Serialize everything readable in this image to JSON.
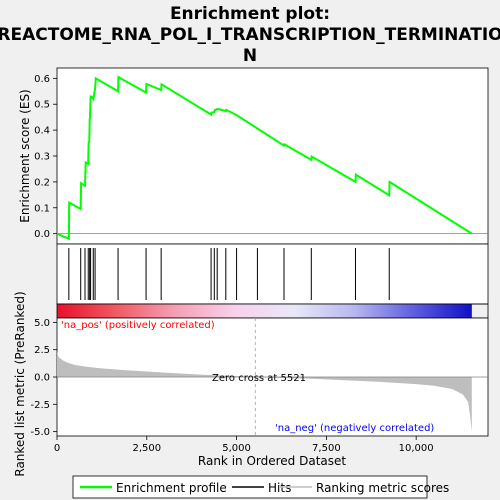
{
  "chart_data": {
    "type": "line",
    "title_lines": [
      "Enrichment plot:",
      "REACTOME_RNA_POL_I_TRANSCRIPTION_TERMINATIO",
      "N"
    ],
    "panels": {
      "enrichment": {
        "ylabel": "Enrichment score (ES)",
        "ylim": [
          -0.04,
          0.64
        ],
        "yticks": [
          "0.0",
          "0.1",
          "0.2",
          "0.3",
          "0.4",
          "0.5",
          "0.6"
        ],
        "series": [
          {
            "name": "Enrichment profile",
            "color": "#00ff00",
            "x": [
              0,
              330,
              340,
              660,
              670,
              780,
              800,
              870,
              880,
              900,
              910,
              920,
              935,
              960,
              1010,
              1060,
              1080,
              1700,
              1710,
              2480,
              2490,
              2900,
              2910,
              4290,
              4300,
              4380,
              4400,
              4460,
              4470,
              4700,
              4710,
              5000,
              6320,
              6330,
              7080,
              7090,
              8310,
              8320,
              9250,
              9260,
              11550
            ],
            "y": [
              0.0,
              -0.02,
              0.12,
              0.095,
              0.195,
              0.185,
              0.275,
              0.27,
              0.35,
              0.355,
              0.44,
              0.45,
              0.53,
              0.53,
              0.52,
              0.56,
              0.6,
              0.55,
              0.605,
              0.545,
              0.578,
              0.555,
              0.577,
              0.46,
              0.467,
              0.47,
              0.478,
              0.48,
              0.482,
              0.474,
              0.478,
              0.458,
              0.34,
              0.345,
              0.285,
              0.298,
              0.2,
              0.228,
              0.148,
              0.2,
              0.0
            ]
          }
        ]
      },
      "hits": {
        "positions": [
          330,
          660,
          780,
          870,
          910,
          935,
          1010,
          1060,
          1700,
          2480,
          2900,
          4290,
          4380,
          4460,
          4700,
          5000,
          5580,
          6320,
          7080,
          8310,
          9250
        ]
      },
      "ranked_metric": {
        "ylabel": "Ranked list metric (PreRanked)",
        "xlabel": "Rank in Ordered Dataset",
        "ylim": [
          -5.4,
          5.4
        ],
        "yticks": [
          "-5.0",
          "-2.5",
          "0.0",
          "2.5",
          "5.0"
        ],
        "xticks": [
          "0",
          "2,500",
          "5,000",
          "7,500",
          "10,000"
        ],
        "xlim": [
          0,
          11550
        ],
        "zero_cross_rank": 5521,
        "x": [
          0,
          50,
          150,
          300,
          500,
          800,
          1200,
          2000,
          3000,
          4000,
          5000,
          5521,
          6000,
          7000,
          8000,
          9000,
          10000,
          10500,
          11000,
          11300,
          11450,
          11500,
          11550
        ],
        "y": [
          2.3,
          1.8,
          1.55,
          1.3,
          1.1,
          0.95,
          0.8,
          0.6,
          0.4,
          0.22,
          0.08,
          0.0,
          -0.06,
          -0.15,
          -0.3,
          -0.45,
          -0.65,
          -0.8,
          -1.1,
          -1.6,
          -2.3,
          -3.5,
          -5.0
        ],
        "fill_color": "#bebebe"
      }
    },
    "annotations": {
      "pos_label": "'na_pos' (positively correlated)",
      "neg_label": "'na_neg' (negatively correlated)",
      "zero_cross": "Zero cross at 5521"
    },
    "legend": {
      "placement": "bottom",
      "entries": [
        {
          "label": "Enrichment profile",
          "color": "#00ff00"
        },
        {
          "label": "Hits",
          "color": "#000000"
        },
        {
          "label": "Ranking metric scores",
          "color": "#bebebe"
        }
      ]
    },
    "colors": {
      "pos_label": "#ff0000",
      "neg_label": "#0000ff",
      "heatbar_gradient": [
        "#e8102a",
        "#f05a64",
        "#f4a0b4",
        "#f8d0ec",
        "#e8e8f8",
        "#b8b8f0",
        "#6060e0",
        "#1010c8"
      ]
    }
  }
}
